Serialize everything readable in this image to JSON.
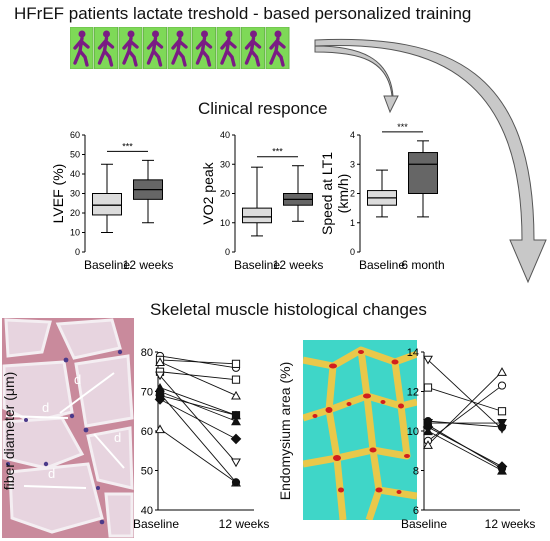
{
  "title": "HFrEF patients lactate treshold - based  personalized training",
  "section1_title": "Clinical responce",
  "section2_title": "Skeletal muscle histological changes",
  "colors": {
    "light_box": "#dcdcdc",
    "dark_box": "#666666",
    "walker_bg": "#7ed957",
    "walker_fig": "#7a1c84",
    "endo_bg": "#3fd6c8",
    "endo_band": "#e9c84a",
    "endo_nuclei": "#d21e1e",
    "histo_bg": "#c98a9c"
  },
  "walker_count": 9,
  "chart_data": [
    {
      "type": "box",
      "ylabel": "LVEF (%)",
      "categories": [
        "Baseline",
        "12 weeks"
      ],
      "ylim": [
        0,
        60
      ],
      "yticks": [
        "0",
        "10",
        "20",
        "30",
        "40",
        "50",
        "60"
      ],
      "significance": "***",
      "boxes": [
        {
          "min": 10,
          "q1": 19,
          "median": 24,
          "q3": 30,
          "max": 45
        },
        {
          "min": 15,
          "q1": 27,
          "median": 32,
          "q3": 37,
          "max": 47
        }
      ]
    },
    {
      "type": "box",
      "ylabel": "VO2 peak",
      "categories": [
        "Baseline",
        "12 weeks"
      ],
      "ylim": [
        0,
        40
      ],
      "yticks": [
        "0",
        "10",
        "20",
        "30",
        "40"
      ],
      "significance": "***",
      "boxes": [
        {
          "min": 5.5,
          "q1": 10,
          "median": 12,
          "q3": 15,
          "max": 29
        },
        {
          "min": 10.5,
          "q1": 16,
          "median": 18,
          "q3": 20,
          "max": 29.5
        }
      ]
    },
    {
      "type": "box",
      "ylabel": "Speed at LT1",
      "ylabel2": "(km/h)",
      "categories": [
        "Baseline",
        "6 month"
      ],
      "ylim": [
        0,
        4
      ],
      "yticks": [
        "0",
        "1",
        "2",
        "3",
        "4"
      ],
      "significance": "***",
      "boxes": [
        {
          "min": 1.2,
          "q1": 1.6,
          "median": 1.85,
          "q3": 2.1,
          "max": 2.8
        },
        {
          "min": 1.2,
          "q1": 2.0,
          "median": 3.0,
          "q3": 3.4,
          "max": 3.8
        }
      ]
    },
    {
      "type": "paired-scatter",
      "ylabel": "fiber diameter (μm)",
      "categories": [
        "Baseline",
        "12 weeks"
      ],
      "ylim": [
        40,
        80
      ],
      "yticks": [
        "40",
        "50",
        "60",
        "70",
        "80"
      ],
      "pairs": [
        {
          "marker": "circle-open",
          "v": [
            79,
            76
          ]
        },
        {
          "marker": "square-open",
          "v": [
            78,
            77
          ]
        },
        {
          "marker": "square-open",
          "v": [
            75,
            73
          ]
        },
        {
          "marker": "triangle-open",
          "v": [
            77.5,
            69
          ]
        },
        {
          "marker": "triangle-filled",
          "v": [
            71,
            64
          ]
        },
        {
          "marker": "triangle-filled",
          "v": [
            70,
            62.5
          ]
        },
        {
          "marker": "diamond-filled",
          "v": [
            68,
            58
          ]
        },
        {
          "marker": "square-filled",
          "v": [
            69,
            64
          ]
        },
        {
          "marker": "triangle-down-open",
          "v": [
            74,
            52
          ]
        },
        {
          "marker": "triangle-open",
          "v": [
            60.5,
            47
          ]
        },
        {
          "marker": "circle-filled",
          "v": [
            69.5,
            47
          ]
        }
      ]
    },
    {
      "type": "paired-scatter",
      "ylabel": "Endomysium area (%)",
      "categories": [
        "Baseline",
        "12 weeks"
      ],
      "ylim": [
        6,
        14
      ],
      "yticks": [
        "6",
        "8",
        "10",
        "12",
        "14"
      ],
      "pairs": [
        {
          "marker": "triangle-down-open",
          "v": [
            13.6,
            10.1
          ]
        },
        {
          "marker": "square-open",
          "v": [
            12.2,
            11
          ]
        },
        {
          "marker": "circle-filled",
          "v": [
            10.5,
            10.2
          ]
        },
        {
          "marker": "circle-filled",
          "v": [
            10.3,
            8.1
          ]
        },
        {
          "marker": "diamond-filled",
          "v": [
            10.2,
            8.2
          ]
        },
        {
          "marker": "triangle-filled",
          "v": [
            10,
            8
          ]
        },
        {
          "marker": "circle-open",
          "v": [
            9.5,
            12.3
          ]
        },
        {
          "marker": "triangle-open",
          "v": [
            9.3,
            13
          ]
        },
        {
          "marker": "triangle-down-filled",
          "v": [
            10.4,
            10.4
          ]
        }
      ]
    }
  ],
  "histology_label": "d"
}
